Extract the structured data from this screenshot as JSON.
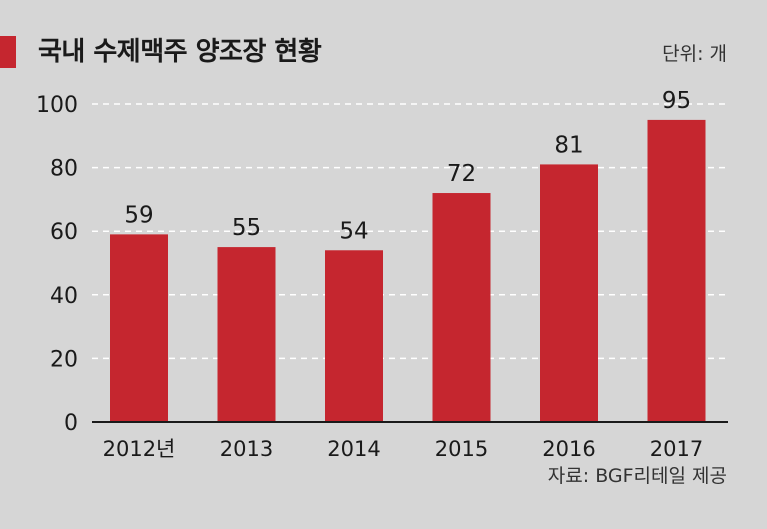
{
  "header": {
    "title": "국내 수제맥주 양조장 현황",
    "unit": "단위: 개"
  },
  "footer": {
    "source": "자료: BGF리테일 제공"
  },
  "colors": {
    "background": "#d6d6d6",
    "bar": "#c5262f",
    "accent": "#c5262f",
    "text": "#1a1a1a",
    "grid": "#ffffff"
  },
  "chart_data": {
    "type": "bar",
    "title": "국내 수제맥주 양조장 현황",
    "categories": [
      "2012년",
      "2013",
      "2014",
      "2015",
      "2016",
      "2017"
    ],
    "values": [
      59,
      55,
      54,
      72,
      81,
      95
    ],
    "yticks": [
      0,
      20,
      40,
      60,
      80,
      100
    ],
    "ylim": [
      0,
      100
    ],
    "grid": true,
    "grid_style": "dashed",
    "data_labels": true
  }
}
